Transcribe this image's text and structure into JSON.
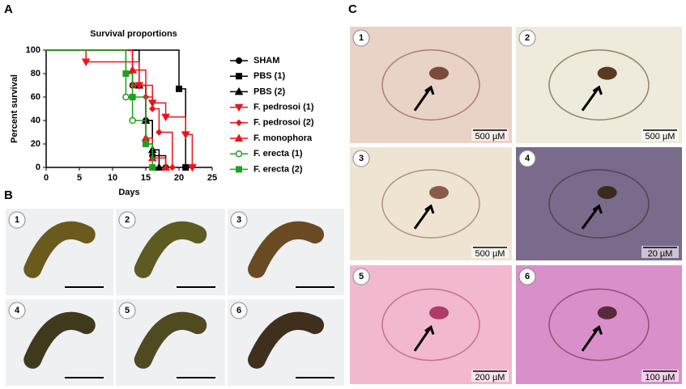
{
  "chart_data": {
    "type": "step",
    "title": "Survival proportions",
    "xlabel": "Days",
    "ylabel": "Percent survival",
    "xlim": [
      0,
      25
    ],
    "ylim": [
      0,
      100
    ],
    "xticks": [
      0,
      5,
      10,
      15,
      20,
      25
    ],
    "yticks": [
      0,
      20,
      40,
      60,
      80,
      100
    ],
    "series": [
      {
        "name": "SHAM",
        "color": "#000000",
        "marker": "circle",
        "x": [
          0,
          13,
          15,
          16,
          18
        ],
        "values": [
          100,
          70,
          40,
          10,
          0
        ]
      },
      {
        "name": "PBS (1)",
        "color": "#000000",
        "marker": "square",
        "x": [
          0,
          20,
          21
        ],
        "values": [
          100,
          67,
          0
        ]
      },
      {
        "name": "PBS (2)",
        "color": "#000000",
        "marker": "triangle",
        "x": [
          0,
          14,
          15,
          16,
          17
        ],
        "values": [
          100,
          70,
          40,
          15,
          0
        ]
      },
      {
        "name": "F. pedrosoi (1)",
        "color": "#e8151b",
        "marker": "triangle-down",
        "x": [
          0,
          6,
          14,
          16,
          18,
          21,
          22
        ],
        "values": [
          100,
          90,
          70,
          55,
          43,
          28,
          0
        ]
      },
      {
        "name": "F. pedrosoi (2)",
        "color": "#e8151b",
        "marker": "diamond",
        "x": [
          0,
          13,
          15,
          16,
          17,
          19
        ],
        "values": [
          100,
          70,
          60,
          50,
          30,
          0
        ]
      },
      {
        "name": "F. monophora",
        "color": "#e8151b",
        "marker": "triangle",
        "x": [
          0,
          13,
          15,
          16,
          18
        ],
        "values": [
          100,
          83,
          25,
          8,
          0
        ]
      },
      {
        "name": "F. erecta (1)",
        "color": "#20a020",
        "marker": "circle-open",
        "x": [
          0,
          12,
          13,
          15,
          16
        ],
        "values": [
          100,
          60,
          40,
          20,
          0
        ]
      },
      {
        "name": "F. erecta (2)",
        "color": "#20a020",
        "marker": "square",
        "x": [
          0,
          12,
          13,
          15,
          16
        ],
        "values": [
          100,
          80,
          60,
          20,
          0
        ]
      }
    ]
  },
  "panel_labels": [
    "A",
    "B",
    "C"
  ],
  "panel_b": {
    "images": [
      "1",
      "2",
      "3",
      "4",
      "5",
      "6"
    ]
  },
  "panel_c": {
    "images": [
      {
        "label": "1",
        "scale": "500 µM"
      },
      {
        "label": "2",
        "scale": "500 µM"
      },
      {
        "label": "3",
        "scale": "500 µM"
      },
      {
        "label": "4",
        "scale": "20 µM"
      },
      {
        "label": "5",
        "scale": "200 µM"
      },
      {
        "label": "6",
        "scale": "100 µM"
      }
    ]
  }
}
